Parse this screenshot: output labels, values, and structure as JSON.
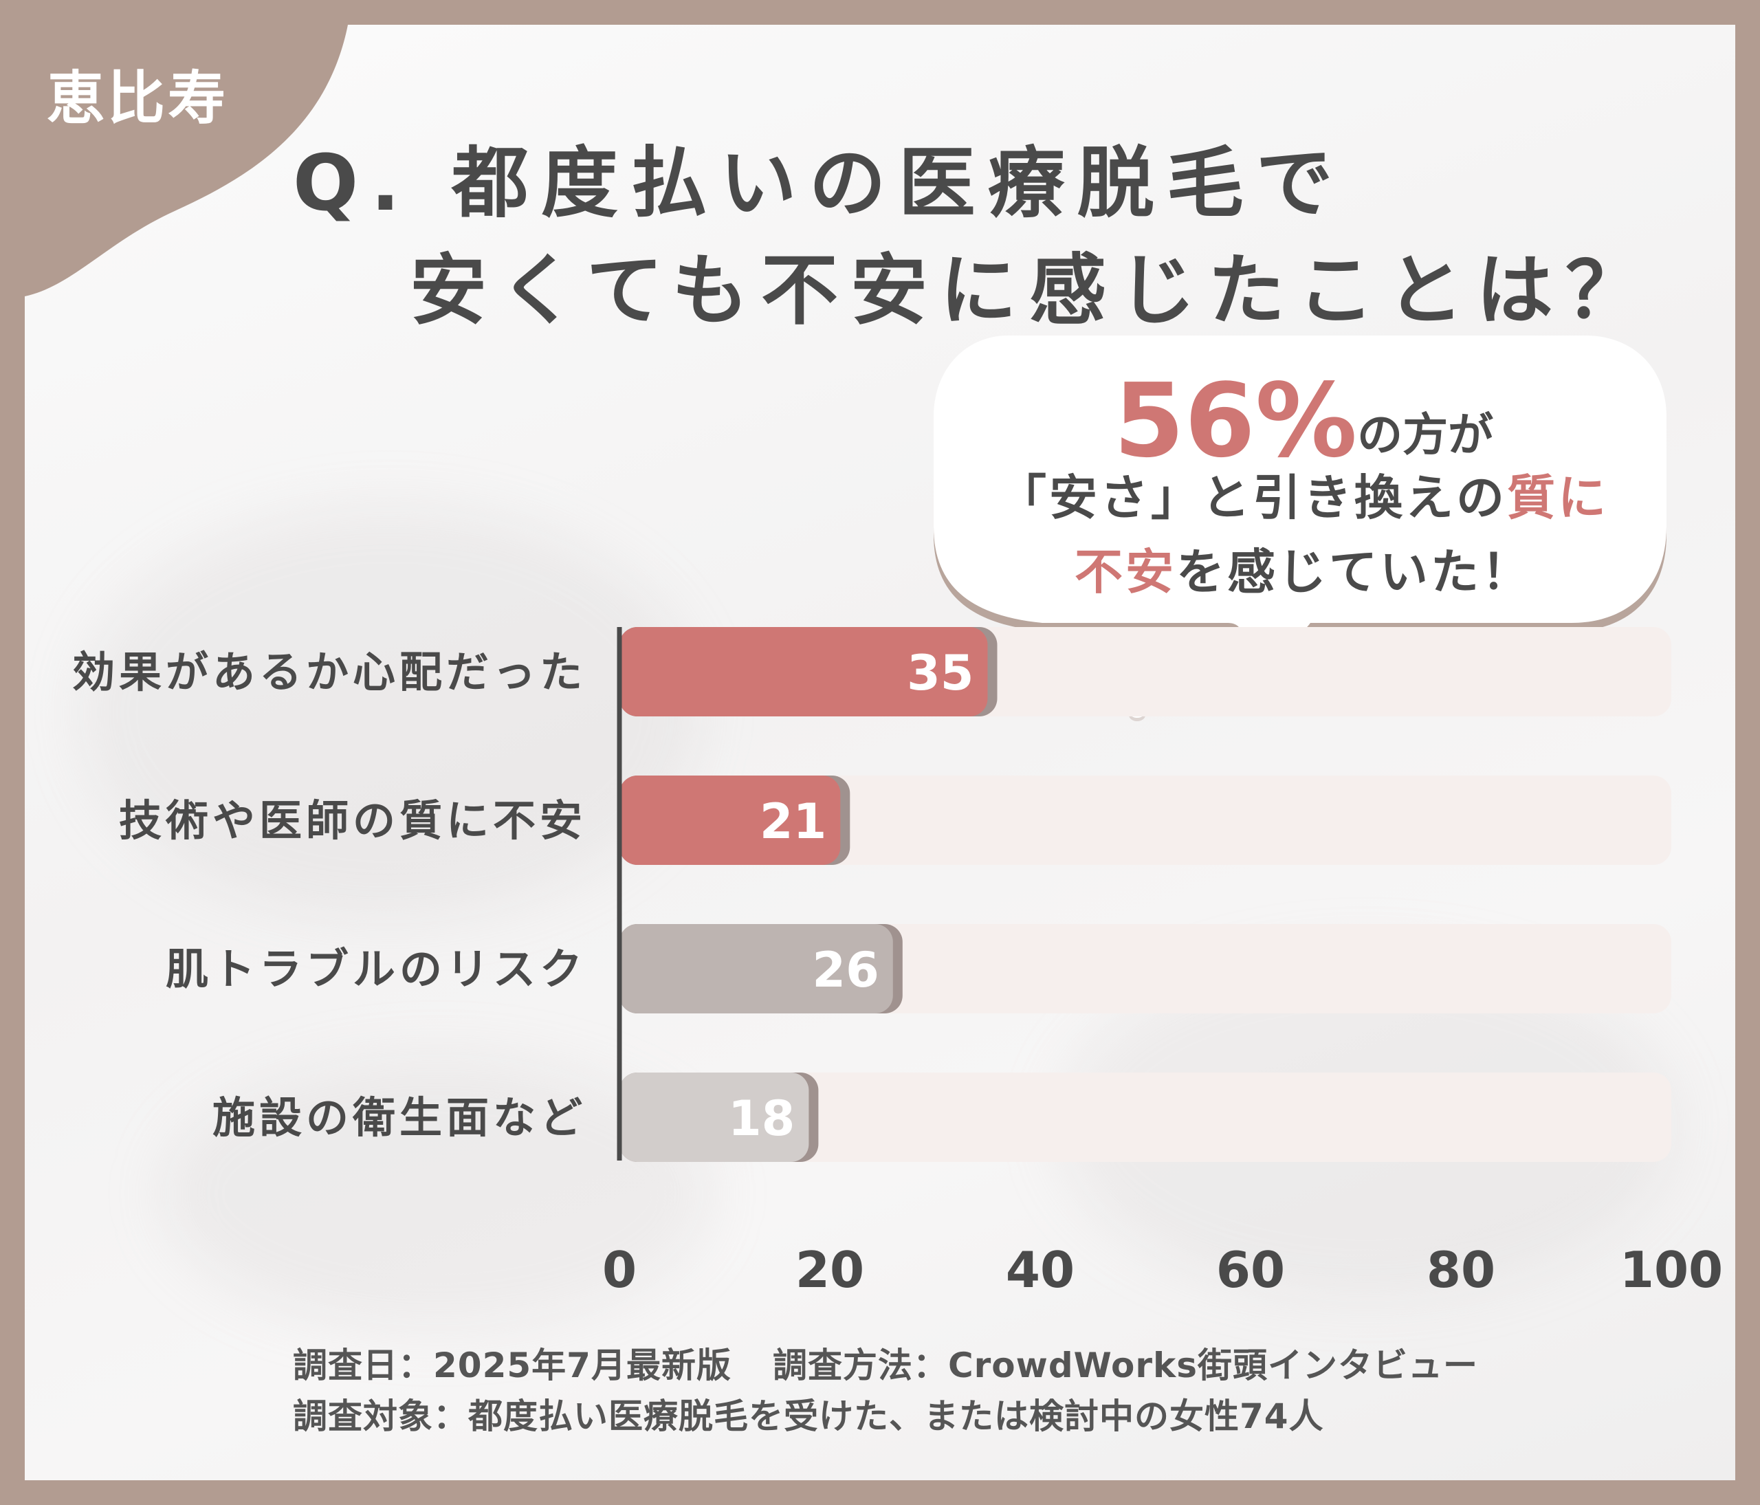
{
  "area_label": "恵比寿",
  "title": {
    "line1": "Q. 都度払いの医療脱毛で",
    "line2": "安くても不安に感じたことは？"
  },
  "callout": {
    "percent": "56%",
    "line1_rest": "の方が",
    "line2_a": "「安さ」と引き換えの",
    "line2_b": "質に",
    "line3_a": "不安",
    "line3_b": "を感じていた！"
  },
  "chart_data": {
    "type": "bar",
    "orientation": "horizontal",
    "categories": [
      "効果があるか心配だった",
      "技術や医師の質に不安",
      "肌トラブルのリスク",
      "施設の衛生面など"
    ],
    "values": [
      35,
      21,
      26,
      18
    ],
    "xlim": [
      0,
      100
    ],
    "xticks": [
      0,
      20,
      40,
      60,
      80,
      100
    ],
    "colors": [
      "#cf7774",
      "#cf7774",
      "#bdb4b1",
      "#d2cdcb"
    ],
    "track_color": "#f6efed"
  },
  "footer": {
    "date": "調査日：2025年7月最新版",
    "method": "調査方法：CrowdWorks街頭インタビュー",
    "target": "調査対象：都度払い医療脱毛を受けた、または検討中の女性74人"
  },
  "colors": {
    "frame": "#b29c91",
    "accent": "#cf7774",
    "text": "#4a4a4a"
  }
}
